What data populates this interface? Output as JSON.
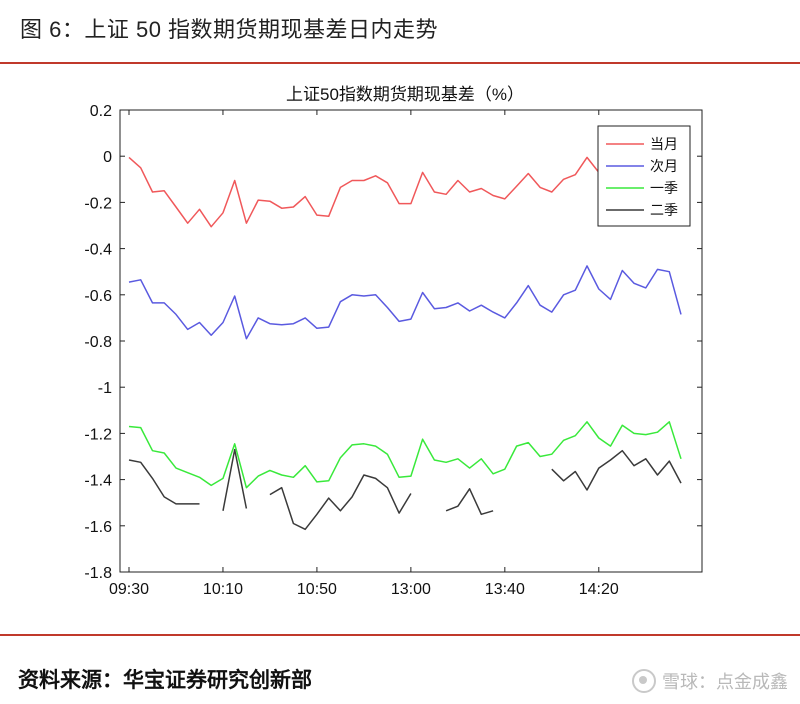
{
  "figure": {
    "title": "图 6：上证 50 指数期货期现基差日内走势"
  },
  "footer": {
    "source": "资料来源：华宝证券研究创新部",
    "watermark": "雪球：点金成鑫",
    "watermark_icon": "snowball-icon"
  },
  "colors": {
    "rule": "#c0392b",
    "series": [
      "#f0585a",
      "#5a5ae0",
      "#39e93b",
      "#3a3a3a"
    ]
  },
  "chart_data": {
    "type": "line",
    "title": "上证50指数期货期现基差（%）",
    "xlabel": "",
    "ylabel": "",
    "ylim": [
      -1.8,
      0.2
    ],
    "yticks": [
      0.2,
      0,
      -0.2,
      -0.4,
      -0.6,
      -0.8,
      -1,
      -1.2,
      -1.4,
      -1.6,
      -1.8
    ],
    "ytick_labels": [
      "0.2",
      "0",
      "-0.2",
      "-0.4",
      "-0.6",
      "-0.8",
      "-1",
      "-1.2",
      "-1.4",
      "-1.6",
      "-1.8"
    ],
    "xtick_labels": [
      "09:30",
      "10:10",
      "10:50",
      "13:00",
      "13:40",
      "14:20"
    ],
    "xtick_index": [
      0,
      8,
      16,
      24,
      32,
      40
    ],
    "n_points": 48,
    "grid": false,
    "legend_position": "top-right",
    "series": [
      {
        "name": "当月",
        "values": [
          -0.005,
          -0.05,
          -0.155,
          -0.15,
          -0.22,
          -0.29,
          -0.23,
          -0.305,
          -0.245,
          -0.105,
          -0.29,
          -0.19,
          -0.195,
          -0.225,
          -0.22,
          -0.175,
          -0.255,
          -0.26,
          -0.135,
          -0.105,
          -0.105,
          -0.085,
          -0.115,
          -0.205,
          -0.205,
          -0.07,
          -0.155,
          -0.165,
          -0.105,
          -0.155,
          -0.14,
          -0.17,
          -0.185,
          -0.13,
          -0.075,
          -0.135,
          -0.155,
          -0.1,
          -0.08,
          -0.005,
          -0.07,
          null,
          null,
          null,
          null,
          null,
          null,
          null
        ]
      },
      {
        "name": "次月",
        "values": [
          -0.545,
          -0.535,
          -0.635,
          -0.635,
          -0.685,
          -0.75,
          -0.72,
          -0.775,
          -0.72,
          -0.605,
          -0.79,
          -0.7,
          -0.725,
          -0.73,
          -0.725,
          -0.7,
          -0.745,
          -0.74,
          -0.63,
          -0.6,
          -0.605,
          -0.6,
          -0.655,
          -0.715,
          -0.705,
          -0.59,
          -0.66,
          -0.655,
          -0.635,
          -0.67,
          -0.645,
          -0.675,
          -0.7,
          -0.635,
          -0.56,
          -0.645,
          -0.675,
          -0.6,
          -0.58,
          -0.475,
          -0.575,
          -0.62,
          -0.495,
          -0.55,
          -0.57,
          -0.49,
          -0.5,
          -0.685
        ]
      },
      {
        "name": "一季",
        "values": [
          -1.17,
          -1.175,
          -1.275,
          -1.285,
          -1.35,
          -1.37,
          -1.39,
          -1.425,
          -1.395,
          -1.245,
          -1.435,
          -1.385,
          -1.36,
          -1.38,
          -1.39,
          -1.34,
          -1.41,
          -1.405,
          -1.305,
          -1.25,
          -1.245,
          -1.255,
          -1.29,
          -1.39,
          -1.385,
          -1.225,
          -1.315,
          -1.325,
          -1.31,
          -1.35,
          -1.31,
          -1.375,
          -1.355,
          -1.255,
          -1.24,
          -1.3,
          -1.29,
          -1.23,
          -1.21,
          -1.15,
          -1.22,
          -1.255,
          -1.165,
          -1.2,
          -1.205,
          -1.195,
          -1.15,
          -1.31
        ]
      },
      {
        "name": "二季",
        "values": [
          -1.315,
          -1.325,
          -1.395,
          -1.475,
          -1.505,
          -1.505,
          -1.505,
          null,
          -1.535,
          -1.27,
          -1.525,
          null,
          -1.465,
          -1.435,
          -1.59,
          -1.615,
          -1.55,
          -1.48,
          -1.535,
          -1.475,
          -1.38,
          -1.395,
          -1.435,
          -1.545,
          -1.46,
          null,
          null,
          -1.535,
          -1.515,
          -1.44,
          -1.55,
          -1.535,
          null,
          null,
          null,
          null,
          -1.355,
          -1.405,
          -1.365,
          -1.445,
          -1.35,
          -1.315,
          -1.275,
          -1.34,
          -1.31,
          -1.38,
          -1.32,
          -1.415
        ]
      }
    ]
  }
}
